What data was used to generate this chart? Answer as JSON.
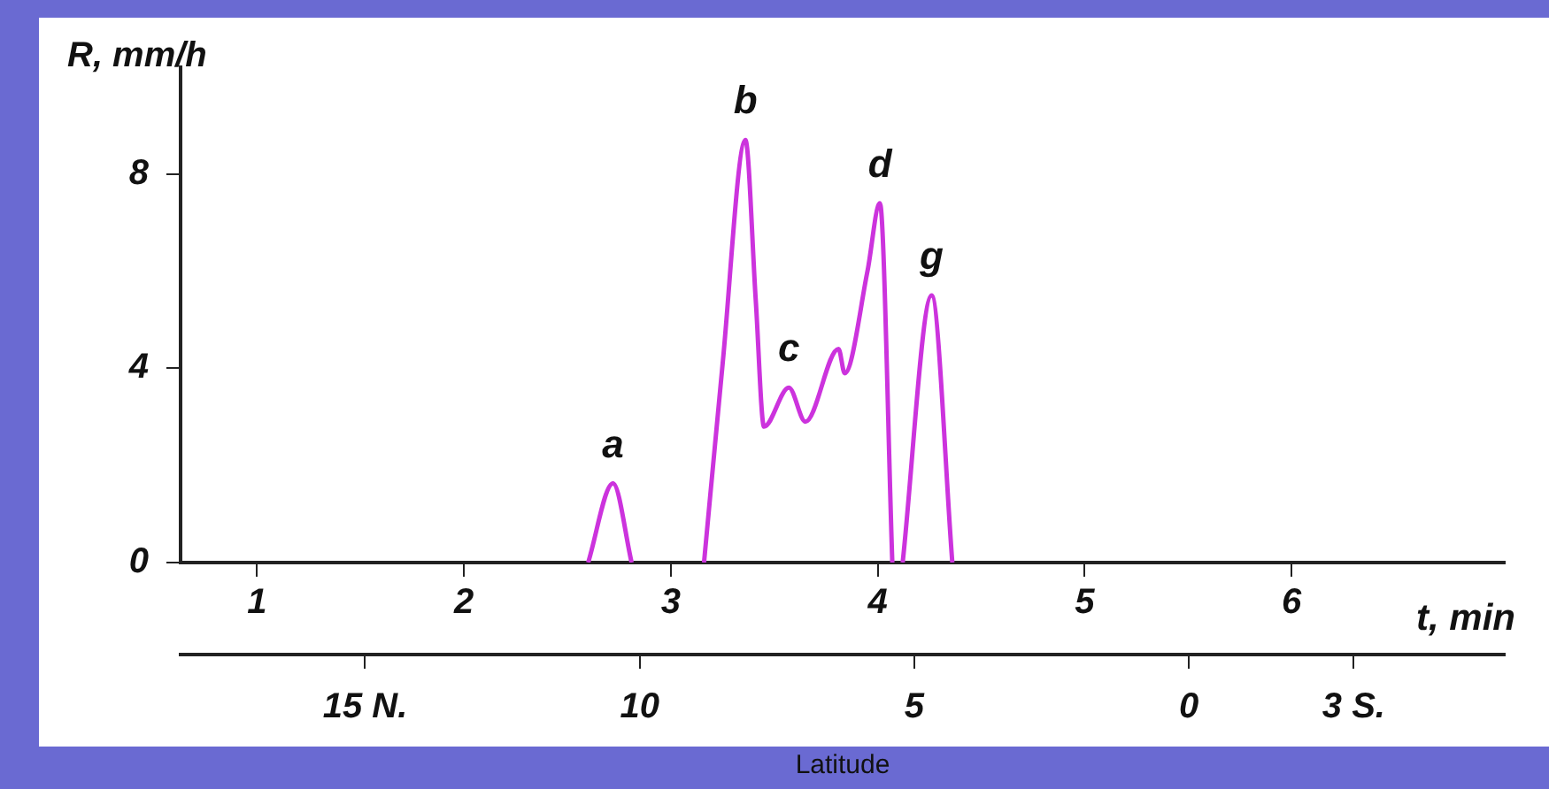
{
  "chart_data": {
    "type": "line",
    "xlabel": "t, min",
    "ylabel": "R, mm/h",
    "x2label": "Latitude",
    "x": [
      2.6,
      2.72,
      2.81,
      3.0,
      3.16,
      3.25,
      3.36,
      3.41,
      3.45,
      3.57,
      3.65,
      3.81,
      3.84,
      3.95,
      4.01,
      4.07,
      4.1,
      4.12,
      4.26,
      4.36
    ],
    "series": [
      {
        "color": "#cc33dd",
        "values": [
          0,
          1.63,
          0,
          null,
          0,
          4.1,
          8.7,
          5.4,
          2.8,
          3.6,
          2.9,
          4.4,
          3.9,
          6.0,
          7.4,
          0,
          null,
          0,
          5.5,
          0
        ]
      }
    ],
    "xlim": [
      0.63,
      7.03
    ],
    "xticks": [
      1,
      2,
      3,
      4,
      5,
      6
    ],
    "x2lim": [
      18.36,
      -5.75
    ],
    "x2ticks": [
      {
        "value": 15,
        "label": "15 N."
      },
      10,
      5,
      0,
      {
        "value": -3,
        "label": "3 S."
      }
    ],
    "ylim": [
      0,
      10.2
    ],
    "yticks": [
      0,
      4,
      8
    ],
    "annotations": [
      {
        "text": "a",
        "x": 2.72,
        "y": 1.63
      },
      {
        "text": "b",
        "x": 3.36,
        "y": 8.7
      },
      {
        "text": "c",
        "x": 3.57,
        "y": 3.6
      },
      {
        "text": "d",
        "x": 4.01,
        "y": 7.4
      },
      {
        "text": "g",
        "x": 4.26,
        "y": 5.5
      }
    ],
    "grid": false,
    "legend": false,
    "marker": "none",
    "line_style": "solid"
  }
}
